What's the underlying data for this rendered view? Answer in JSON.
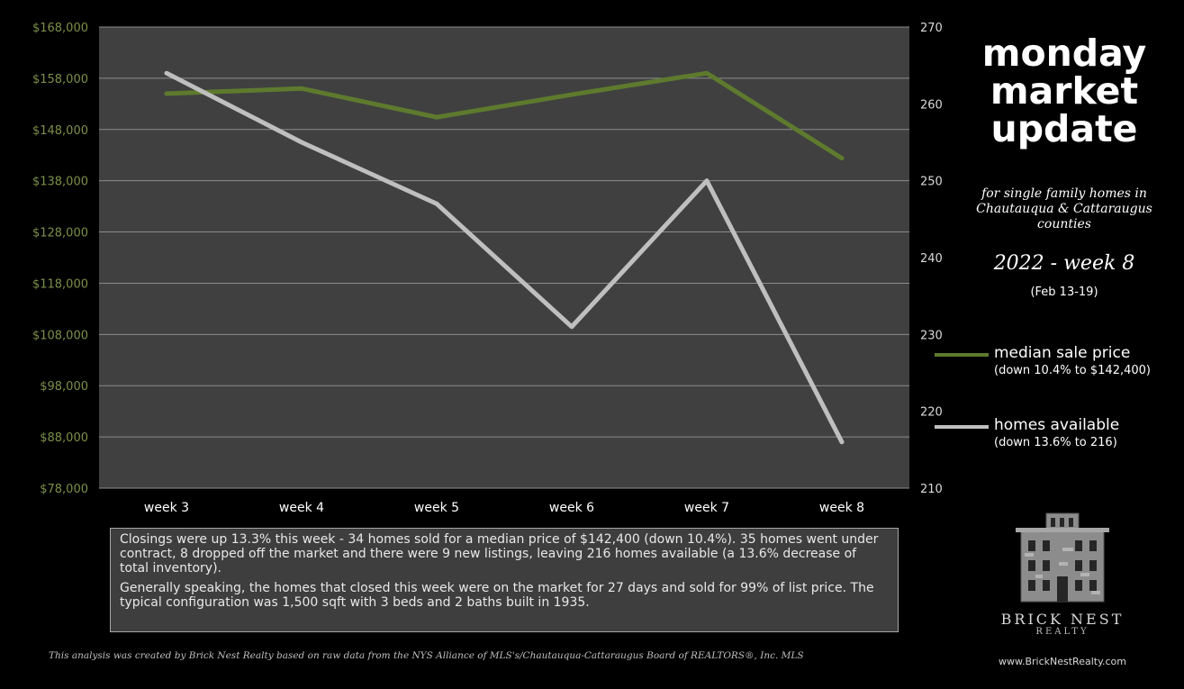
{
  "chart_data": {
    "type": "line",
    "categories": [
      "week 3",
      "week 4",
      "week 5",
      "week 6",
      "week 7",
      "week 8"
    ],
    "series": [
      {
        "name": "median sale price",
        "axis": "left",
        "color": "#5e7a2e",
        "values": [
          155000,
          156000,
          150400,
          154800,
          159000,
          142400
        ]
      },
      {
        "name": "homes available",
        "axis": "right",
        "color": "#bfbfbf",
        "values": [
          264,
          255,
          247,
          231,
          250,
          216
        ]
      }
    ],
    "y_left": {
      "min": 78000,
      "max": 168000,
      "step": 10000,
      "ticks": [
        "$78,000",
        "$88,000",
        "$98,000",
        "$108,000",
        "$118,000",
        "$128,000",
        "$138,000",
        "$148,000",
        "$158,000",
        "$168,000"
      ]
    },
    "y_right": {
      "min": 210,
      "max": 270,
      "step": 10,
      "ticks": [
        "210",
        "220",
        "230",
        "240",
        "250",
        "260",
        "270"
      ]
    },
    "grid": true,
    "plot_background": "#404040"
  },
  "title": {
    "lines": [
      "monday",
      "market",
      "update"
    ]
  },
  "subtitle": "for single family homes in Chautauqua & Cattaraugus counties",
  "period": "2022 - week 8",
  "dates": "(Feb 13-19)",
  "legend": [
    {
      "name": "median sale price",
      "note": "(down 10.4% to $142,400)",
      "color": "#5e7a2e"
    },
    {
      "name": "homes available",
      "note": "(down 13.6% to 216)",
      "color": "#bfbfbf"
    }
  ],
  "summary": {
    "p1": "Closings were up 13.3% this week - 34 homes sold for a median price of $142,400 (down 10.4%). 35 homes went under contract, 8 dropped off the market and there were 9 new listings, leaving 216 homes available (a 13.6% decrease of total inventory).",
    "p2": "Generally speaking, the homes that closed this week were on the market for 27 days and sold for 99% of list price. The typical configuration was 1,500 sqft with 3 beds and 2 baths built in 1935."
  },
  "footer": "This analysis was created by Brick Nest Realty based on raw data from the NYS Alliance of MLS's/Chautauqua-Cattaraugus Board of REALTORS®, Inc. MLS",
  "brand": {
    "name": "BRICK NEST",
    "sub": "REALTY",
    "url": "www.BrickNestRealty.com"
  }
}
